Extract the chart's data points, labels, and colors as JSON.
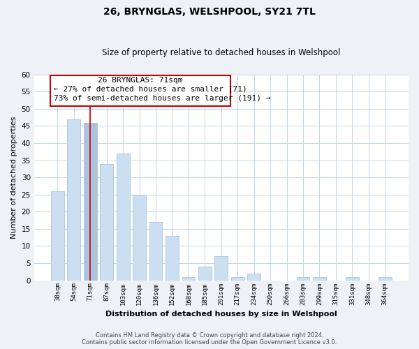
{
  "title": "26, BRYNGLAS, WELSHPOOL, SY21 7TL",
  "subtitle": "Size of property relative to detached houses in Welshpool",
  "xlabel": "Distribution of detached houses by size in Welshpool",
  "ylabel": "Number of detached properties",
  "categories": [
    "38sqm",
    "54sqm",
    "71sqm",
    "87sqm",
    "103sqm",
    "120sqm",
    "136sqm",
    "152sqm",
    "168sqm",
    "185sqm",
    "201sqm",
    "217sqm",
    "234sqm",
    "250sqm",
    "266sqm",
    "283sqm",
    "299sqm",
    "315sqm",
    "331sqm",
    "348sqm",
    "364sqm"
  ],
  "values": [
    26,
    47,
    46,
    34,
    37,
    25,
    17,
    13,
    1,
    4,
    7,
    1,
    2,
    0,
    0,
    1,
    1,
    0,
    1,
    0,
    1
  ],
  "highlight_index": 2,
  "bar_color": "#ccdff0",
  "highlight_bar_color": "#aac4df",
  "bar_edge_color": "#a8c4de",
  "highlight_line_color": "#cc0000",
  "ylim": [
    0,
    60
  ],
  "yticks": [
    0,
    5,
    10,
    15,
    20,
    25,
    30,
    35,
    40,
    45,
    50,
    55,
    60
  ],
  "annotation_title": "26 BRYNGLAS: 71sqm",
  "annotation_line1": "← 27% of detached houses are smaller (71)",
  "annotation_line2": "73% of semi-detached houses are larger (191) →",
  "footer_line1": "Contains HM Land Registry data © Crown copyright and database right 2024.",
  "footer_line2": "Contains public sector information licensed under the Open Government Licence v3.0.",
  "bg_color": "#eef2f7",
  "plot_bg_color": "#ffffff",
  "grid_color": "#c5d5e8",
  "ann_box_edge": "#cc0000",
  "ann_box_face": "#ffffff"
}
